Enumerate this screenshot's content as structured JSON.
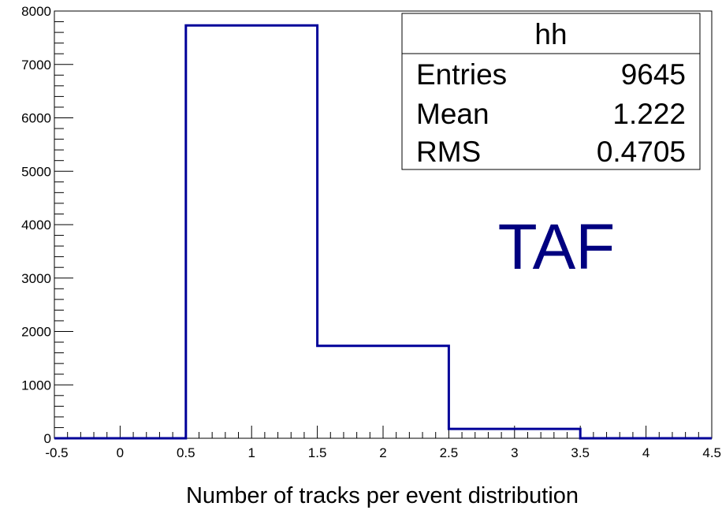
{
  "chart_data": {
    "type": "histogram",
    "title": "",
    "xlabel": "Number of tracks per event distribution",
    "ylabel": "",
    "xlim": [
      -0.5,
      4.5
    ],
    "ylim": [
      0,
      8000
    ],
    "bins": [
      {
        "low": -0.5,
        "high": 0.5,
        "value": 0
      },
      {
        "low": 0.5,
        "high": 1.5,
        "value": 7730
      },
      {
        "low": 1.5,
        "high": 2.5,
        "value": 1730
      },
      {
        "low": 2.5,
        "high": 3.5,
        "value": 175
      },
      {
        "low": 3.5,
        "high": 4.5,
        "value": 0
      }
    ],
    "x_ticks": [
      "-0.5",
      "0",
      "0.5",
      "1",
      "1.5",
      "2",
      "2.5",
      "3",
      "3.5",
      "4",
      "4.5"
    ],
    "y_ticks": [
      "0",
      "1000",
      "2000",
      "3000",
      "4000",
      "5000",
      "6000",
      "7000",
      "8000"
    ],
    "line_color": "#000099",
    "grid": false,
    "stats_box": {
      "title": "hh",
      "position": "top-right",
      "rows": [
        {
          "label": "Entries",
          "value": "9645"
        },
        {
          "label": "Mean",
          "value": "1.222"
        },
        {
          "label": "RMS",
          "value": "0.4705"
        }
      ]
    },
    "annotation": {
      "text": "TAF",
      "color": "#000080"
    }
  }
}
